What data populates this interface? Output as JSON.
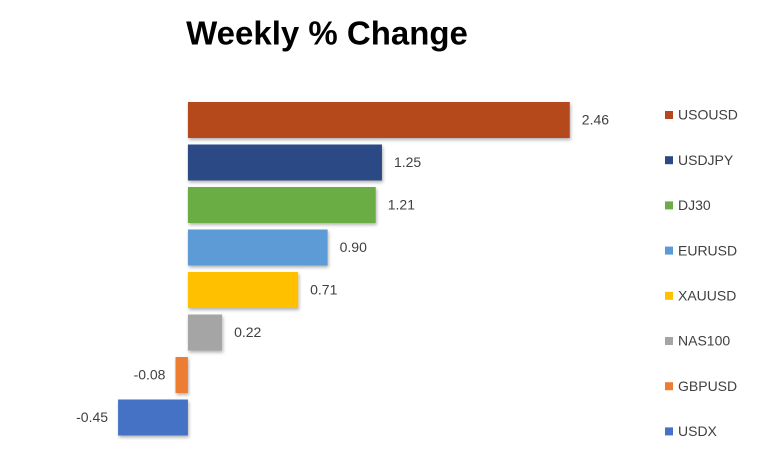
{
  "chart_data": {
    "type": "hbar",
    "title": "Weekly % Change",
    "categories": [
      "USOUSD",
      "USDJPY",
      "DJ30",
      "EURUSD",
      "XAUUSD",
      "NAS100",
      "GBPUSD",
      "USDX"
    ],
    "values": [
      2.46,
      1.25,
      1.21,
      0.9,
      0.71,
      0.22,
      -0.08,
      -0.45
    ],
    "value_labels": [
      "2.46",
      "1.25",
      "1.21",
      "0.90",
      "0.71",
      "0.22",
      "-0.08",
      "-0.45"
    ],
    "colors": [
      "#b5481e",
      "#2b4a85",
      "#6aad45",
      "#5b9bd5",
      "#ffc000",
      "#a5a5a5",
      "#ed7d31",
      "#4472c4"
    ],
    "xlim": [
      -0.5,
      2.5
    ],
    "legend": "right"
  }
}
